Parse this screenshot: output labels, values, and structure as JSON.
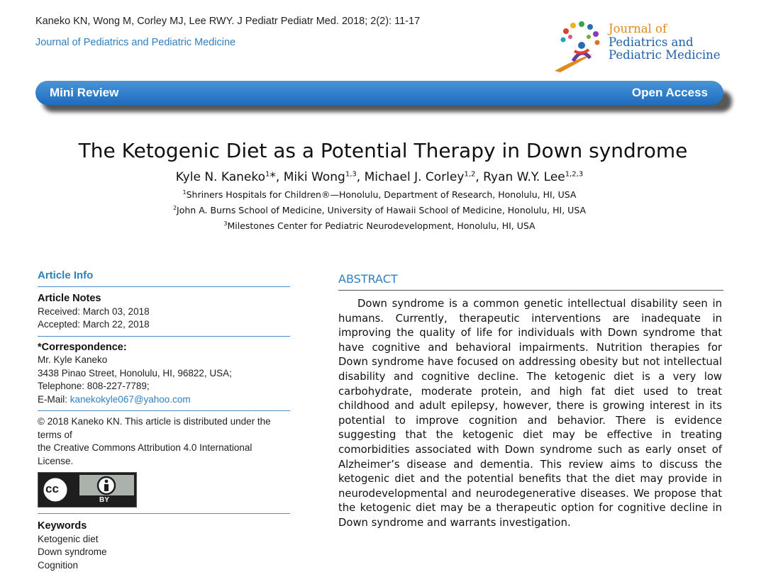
{
  "header": {
    "citation": "Kaneko KN, Wong M, Corley MJ, Lee RWY. J Pediatr Pediatr Med. 2018; 2(2): 11-17",
    "journal_link": "Journal of Pediatrics and Pediatric Medicine"
  },
  "logo": {
    "line1": "Journal of",
    "line2": "Pediatrics and",
    "line3": "Pediatric Medicine"
  },
  "banner": {
    "left": "Mini Review",
    "right": "Open Access"
  },
  "article": {
    "title": "The Ketogenic Diet as a Potential Therapy in Down syndrome",
    "authors": [
      {
        "name": "Kyle N. Kaneko",
        "sup": "1",
        "suffix": "*, "
      },
      {
        "name": "Miki Wong",
        "sup": "1,3",
        "suffix": ", "
      },
      {
        "name": "Michael J. Corley",
        "sup": "1,2",
        "suffix": ", "
      },
      {
        "name": "Ryan W.Y. Lee",
        "sup": "1,2,3",
        "suffix": ""
      }
    ],
    "affiliations": [
      {
        "num": "1",
        "text": "Shriners Hospitals for Children®—Honolulu, Department of Research, Honolulu, HI, USA"
      },
      {
        "num": "2",
        "text": "John A. Burns School of Medicine, University of Hawaii School of Medicine, Honolulu, HI, USA"
      },
      {
        "num": "3",
        "text": "Milestones Center for Pediatric Neurodevelopment, Honolulu, HI, USA"
      }
    ]
  },
  "article_info": {
    "heading": "Article Info",
    "notes_heading": "Article Notes",
    "received": "Received: March 03, 2018",
    "accepted": "Accepted: March 22, 2018",
    "correspondence_heading": "*Correspondence:",
    "name": "Mr. Kyle Kaneko",
    "address": "3438 Pinao Street, Honolulu, HI, 96822, USA;",
    "telephone": "Telephone: 808-227-7789;",
    "email_label": "E-Mail: ",
    "email": "kanekokyle067@yahoo.com",
    "license_line1": "© 2018 Kaneko KN. This article is distributed under the terms of",
    "license_line2": "the Creative Commons Attribution 4.0 International License.",
    "cc_symbol": "cc",
    "cc_by": "BY",
    "keywords_heading": "Keywords",
    "keywords": [
      "Ketogenic diet",
      "Down syndrome",
      "Cognition"
    ]
  },
  "abstract": {
    "heading": "ABSTRACT",
    "text": "Down syndrome is a common genetic intellectual disability seen in humans. Currently, therapeutic interventions are inadequate in improving the quality of life for individuals with Down syndrome that have cognitive and behavioral impairments. Nutrition therapies for Down syndrome have focused on addressing obesity but not intellectual disability and cognitive decline. The ketogenic diet is a very low carbohydrate, moderate protein, and high fat diet used to treat childhood and adult epilepsy, however, there is growing interest in its potential to improve cognition and behavior. There is evidence suggesting that the ketogenic diet may be effective in treating comorbidities associated with Down syndrome such as early onset of Alzheimer’s disease and dementia. This review aims to discuss the ketogenic diet and the potential benefits that the diet may provide in neurodevelopmental and neurodegenerative diseases. We propose that the ketogenic diet may be a therapeutic option for cognitive decline in Down syndrome and warrants investigation."
  },
  "colors": {
    "accent": "#2f7fc1",
    "banner_top": "#4a95d8",
    "banner_bottom": "#1d6cbf",
    "logo_orange": "#e08a1e"
  },
  "icons": {
    "logo": "children-hands-logo-icon",
    "license": "cc-by-icon"
  }
}
